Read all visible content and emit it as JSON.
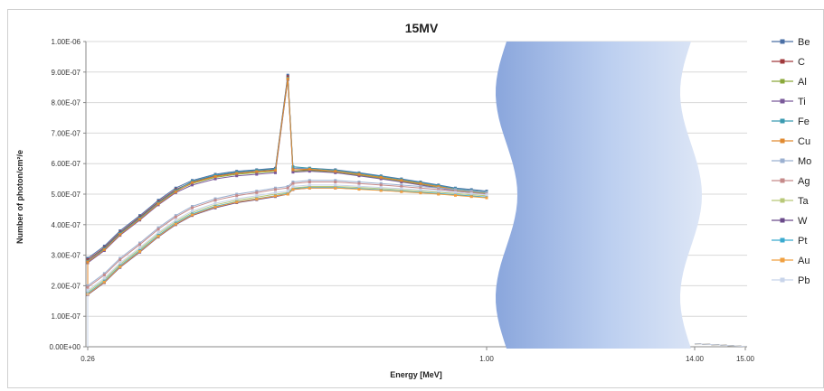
{
  "chart_data": {
    "type": "line",
    "title": "15MV",
    "xlabel": "Energy [MeV]",
    "ylabel": "Number of photon/cm²/e",
    "x_tick_labels": [
      "0.26",
      "1.00",
      "14.00",
      "15.00"
    ],
    "y_tick_labels": [
      "0.00E+00",
      "1.00E-07",
      "2.00E-07",
      "3.00E-07",
      "4.00E-07",
      "5.00E-07",
      "6.00E-07",
      "7.00E-07",
      "8.00E-07",
      "9.00E-07",
      "1.00E-06"
    ],
    "ylim": [
      0,
      1e-06
    ],
    "grid": true,
    "legend_position": "right",
    "axis_break": "between 1.00 and 14.00 MeV",
    "x": [
      0.26,
      0.275,
      0.29,
      0.31,
      0.33,
      0.35,
      0.37,
      0.4,
      0.43,
      0.46,
      0.49,
      0.511,
      0.52,
      0.55,
      0.6,
      0.65,
      0.7,
      0.75,
      0.8,
      0.85,
      0.9,
      0.95,
      1.0
    ],
    "tail": {
      "x": [
        14.0,
        14.5,
        15.0
      ],
      "values": [
        1e-08,
        6e-09,
        1e-09
      ]
    },
    "series": [
      {
        "name": "Be",
        "color": "#4a6fa5",
        "marker": "diamond",
        "values": [
          2.9e-07,
          3.3e-07,
          3.8e-07,
          4.3e-07,
          4.8e-07,
          5.2e-07,
          5.45e-07,
          5.65e-07,
          5.75e-07,
          5.8e-07,
          5.85e-07,
          8.9e-07,
          5.85e-07,
          5.85e-07,
          5.8e-07,
          5.7e-07,
          5.6e-07,
          5.5e-07,
          5.4e-07,
          5.3e-07,
          5.2e-07,
          5.15e-07,
          5.1e-07
        ]
      },
      {
        "name": "C",
        "color": "#a0393c",
        "marker": "square",
        "values": [
          2.85e-07,
          3.25e-07,
          3.75e-07,
          4.25e-07,
          4.75e-07,
          5.15e-07,
          5.4e-07,
          5.6e-07,
          5.7e-07,
          5.75e-07,
          5.8e-07,
          8.85e-07,
          5.8e-07,
          5.8e-07,
          5.75e-07,
          5.65e-07,
          5.55e-07,
          5.45e-07,
          5.35e-07,
          5.25e-07,
          5.15e-07,
          5.1e-07,
          5.05e-07
        ]
      },
      {
        "name": "Al",
        "color": "#8aa83a",
        "marker": "triangle",
        "values": [
          2.8e-07,
          3.2e-07,
          3.7e-07,
          4.2e-07,
          4.7e-07,
          5.1e-07,
          5.35e-07,
          5.55e-07,
          5.65e-07,
          5.7e-07,
          5.75e-07,
          8.8e-07,
          5.75e-07,
          5.78e-07,
          5.72e-07,
          5.62e-07,
          5.52e-07,
          5.42e-07,
          5.32e-07,
          5.22e-07,
          5.12e-07,
          5.07e-07,
          5.02e-07
        ]
      },
      {
        "name": "Ti",
        "color": "#7a5a9a",
        "marker": "x",
        "values": [
          2.75e-07,
          3.15e-07,
          3.65e-07,
          4.15e-07,
          4.65e-07,
          5.05e-07,
          5.3e-07,
          5.5e-07,
          5.6e-07,
          5.65e-07,
          5.7e-07,
          8.75e-07,
          5.72e-07,
          5.75e-07,
          5.7e-07,
          5.6e-07,
          5.5e-07,
          5.4e-07,
          5.3e-07,
          5.2e-07,
          5.1e-07,
          5.05e-07,
          5e-07
        ]
      },
      {
        "name": "Fe",
        "color": "#3a9ab0",
        "marker": "star",
        "values": [
          2.8e-07,
          3.22e-07,
          3.72e-07,
          4.22e-07,
          4.72e-07,
          5.12e-07,
          5.42e-07,
          5.62e-07,
          5.72e-07,
          5.78e-07,
          5.82e-07,
          8.8e-07,
          5.9e-07,
          5.85e-07,
          5.78e-07,
          5.68e-07,
          5.58e-07,
          5.48e-07,
          5.38e-07,
          5.28e-07,
          5.18e-07,
          5.12e-07,
          5.07e-07
        ]
      },
      {
        "name": "Cu",
        "color": "#e08a30",
        "marker": "circle",
        "values": [
          2.78e-07,
          3.18e-07,
          3.68e-07,
          4.18e-07,
          4.68e-07,
          5.08e-07,
          5.38e-07,
          5.58e-07,
          5.68e-07,
          5.74e-07,
          5.78e-07,
          8.78e-07,
          5.8e-07,
          5.82e-07,
          5.75e-07,
          5.65e-07,
          5.55e-07,
          5.45e-07,
          5.35e-07,
          5.25e-07,
          5.15e-07,
          5.1e-07,
          5.05e-07
        ]
      },
      {
        "name": "Mo",
        "color": "#9bb0d0",
        "marker": "plus",
        "values": [
          2e-07,
          2.4e-07,
          2.9e-07,
          3.4e-07,
          3.9e-07,
          4.3e-07,
          4.6e-07,
          4.85e-07,
          5e-07,
          5.1e-07,
          5.2e-07,
          5.25e-07,
          5.4e-07,
          5.45e-07,
          5.45e-07,
          5.4e-07,
          5.35e-07,
          5.3e-07,
          5.25e-07,
          5.2e-07,
          5.15e-07,
          5.1e-07,
          5.05e-07
        ]
      },
      {
        "name": "Ag",
        "color": "#c58a8a",
        "marker": "dash",
        "values": [
          1.95e-07,
          2.35e-07,
          2.85e-07,
          3.35e-07,
          3.85e-07,
          4.25e-07,
          4.55e-07,
          4.8e-07,
          4.95e-07,
          5.05e-07,
          5.15e-07,
          5.2e-07,
          5.35e-07,
          5.4e-07,
          5.4e-07,
          5.35e-07,
          5.3e-07,
          5.25e-07,
          5.2e-07,
          5.15e-07,
          5.1e-07,
          5.05e-07,
          5e-07
        ]
      },
      {
        "name": "Ta",
        "color": "#b8c878",
        "marker": "dash",
        "values": [
          1.8e-07,
          2.2e-07,
          2.7e-07,
          3.2e-07,
          3.7e-07,
          4.1e-07,
          4.4e-07,
          4.65e-07,
          4.8e-07,
          4.9e-07,
          5e-07,
          5.05e-07,
          5.2e-07,
          5.25e-07,
          5.25e-07,
          5.22e-07,
          5.18e-07,
          5.14e-07,
          5.1e-07,
          5.06e-07,
          5.02e-07,
          4.98e-07,
          4.95e-07
        ]
      },
      {
        "name": "W",
        "color": "#6a4a8a",
        "marker": "dash",
        "values": [
          1.7e-07,
          2.1e-07,
          2.6e-07,
          3.1e-07,
          3.6e-07,
          4e-07,
          4.3e-07,
          4.55e-07,
          4.72e-07,
          4.82e-07,
          4.92e-07,
          5e-07,
          5.15e-07,
          5.2e-07,
          5.2e-07,
          5.17e-07,
          5.13e-07,
          5.09e-07,
          5.05e-07,
          5.01e-07,
          4.97e-07,
          4.93e-07,
          4.9e-07
        ]
      },
      {
        "name": "Pt",
        "color": "#3aaacf",
        "marker": "square",
        "values": [
          1.75e-07,
          2.15e-07,
          2.65e-07,
          3.15e-07,
          3.65e-07,
          4.05e-07,
          4.35e-07,
          4.6e-07,
          4.75e-07,
          4.85e-07,
          4.95e-07,
          5.02e-07,
          5.18e-07,
          5.22e-07,
          5.22e-07,
          5.18e-07,
          5.14e-07,
          5.1e-07,
          5.06e-07,
          5.02e-07,
          4.98e-07,
          4.94e-07,
          4.9e-07
        ]
      },
      {
        "name": "Au",
        "color": "#f0a040",
        "marker": "circle",
        "values": [
          1.72e-07,
          2.12e-07,
          2.62e-07,
          3.12e-07,
          3.62e-07,
          4.02e-07,
          4.32e-07,
          4.58e-07,
          4.74e-07,
          4.84e-07,
          4.94e-07,
          5e-07,
          5.16e-07,
          5.2e-07,
          5.2e-07,
          5.16e-07,
          5.12e-07,
          5.08e-07,
          5.04e-07,
          5e-07,
          4.96e-07,
          4.92e-07,
          4.88e-07
        ]
      },
      {
        "name": "Pb",
        "color": "#c8d4ea",
        "marker": "dash",
        "values": [
          1.85e-07,
          2.25e-07,
          2.75e-07,
          3.25e-07,
          3.75e-07,
          4.15e-07,
          4.45e-07,
          4.7e-07,
          4.85e-07,
          4.95e-07,
          5.05e-07,
          5.1e-07,
          5.25e-07,
          5.3e-07,
          5.3e-07,
          5.26e-07,
          5.22e-07,
          5.18e-07,
          5.14e-07,
          5.1e-07,
          5.06e-07,
          5.02e-07,
          4.98e-07
        ]
      }
    ]
  }
}
